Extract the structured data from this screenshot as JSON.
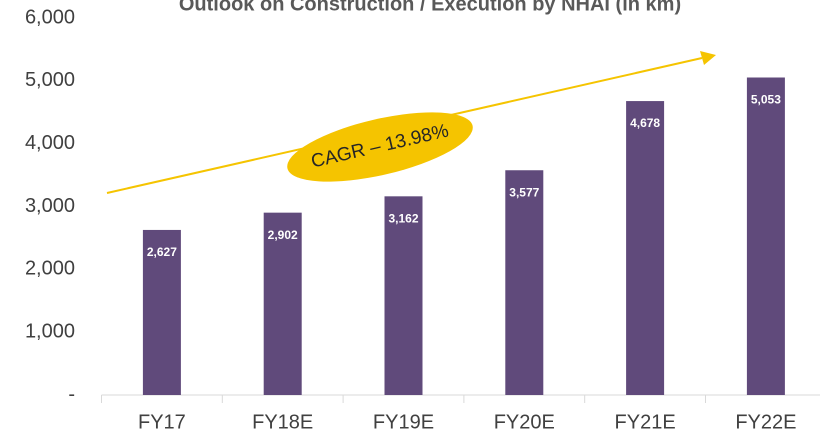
{
  "chart_data": {
    "type": "bar",
    "title": "Outlook on Construction / Execution by NHAI (in km)",
    "categories": [
      "FY17",
      "FY18E",
      "FY19E",
      "FY20E",
      "FY21E",
      "FY22E"
    ],
    "values": [
      2627,
      2902,
      3162,
      3577,
      4678,
      5053
    ],
    "value_labels": [
      "2,627",
      "2,902",
      "3,162",
      "3,577",
      "4,678",
      "5,053"
    ],
    "color": "#604a7b",
    "ylim": [
      0,
      6000
    ],
    "yticks": [
      {
        "value": 0,
        "label": "-"
      },
      {
        "value": 1000,
        "label": "1,000"
      },
      {
        "value": 2000,
        "label": "2,000"
      },
      {
        "value": 3000,
        "label": "3,000"
      },
      {
        "value": 4000,
        "label": "4,000"
      },
      {
        "value": 5000,
        "label": "5,000"
      },
      {
        "value": 6000,
        "label": "6,000"
      }
    ],
    "grid": false,
    "annotation": "CAGR – 13.98%"
  }
}
